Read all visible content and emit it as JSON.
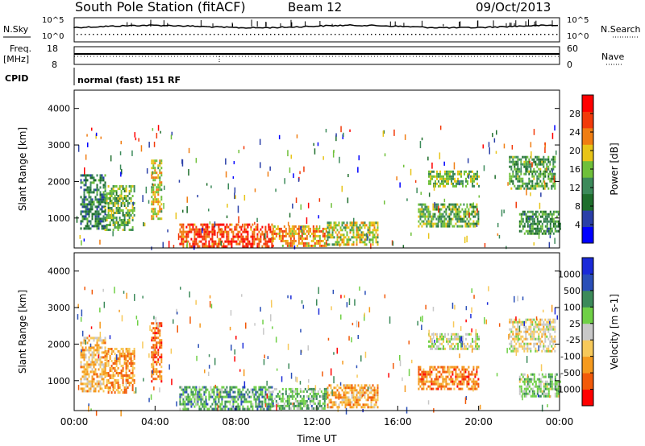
{
  "header": {
    "station": "South Pole Station (fitACF)",
    "beam": "Beam 12",
    "date": "09/Oct/2013"
  },
  "status_panel": {
    "nsky_label": "N.Sky",
    "nsky_ticks": [
      "10^5",
      "10^0"
    ],
    "nsearch_label": "N.Search",
    "nsearch_ticks": [
      "10^5",
      "10^0"
    ],
    "freq_label": "Freq.",
    "freq_unit": "[MHz]",
    "freq_ticks": [
      "18",
      "8"
    ],
    "nave_label": "Nave",
    "nave_ticks": [
      "60",
      "0"
    ],
    "cpid_label": "CPID",
    "cpid_value": "normal (fast) 151 RF"
  },
  "chart_data": [
    {
      "type": "heatmap",
      "name": "power",
      "ylabel": "Slant Range [km]",
      "yticks": [
        "1000",
        "2000",
        "3000",
        "4000"
      ],
      "ylim": [
        180,
        4500
      ],
      "xlim": [
        0,
        24
      ],
      "colorbar_label": "Power [dB]",
      "colorbar_ticks": [
        "28",
        "24",
        "20",
        "16",
        "12",
        "8",
        "4"
      ],
      "colormap": [
        "#0000ff",
        "#2a3fa8",
        "#1e6e2c",
        "#3c8a5a",
        "#6fc03a",
        "#e8c418",
        "#f07d12",
        "#f23a0a",
        "#ff0000"
      ],
      "regions": [
        {
          "t": [
            0.3,
            1.5
          ],
          "r": [
            700,
            2200
          ],
          "level": 0.3
        },
        {
          "t": [
            1.5,
            3.0
          ],
          "r": [
            700,
            1900
          ],
          "level": 0.45
        },
        {
          "t": [
            3.8,
            4.3
          ],
          "r": [
            1000,
            2600
          ],
          "level": 0.6
        },
        {
          "t": [
            5.2,
            9.8
          ],
          "r": [
            250,
            850
          ],
          "level": 0.85
        },
        {
          "t": [
            9.8,
            12.5
          ],
          "r": [
            250,
            800
          ],
          "level": 0.7
        },
        {
          "t": [
            12.5,
            15.0
          ],
          "r": [
            250,
            900
          ],
          "level": 0.55
        },
        {
          "t": [
            17.5,
            20.0
          ],
          "r": [
            1900,
            2300
          ],
          "level": 0.5
        },
        {
          "t": [
            17.0,
            20.0
          ],
          "r": [
            800,
            1400
          ],
          "level": 0.45
        },
        {
          "t": [
            21.5,
            23.8
          ],
          "r": [
            1800,
            2700
          ],
          "level": 0.4
        },
        {
          "t": [
            22.0,
            24.0
          ],
          "r": [
            600,
            1200
          ],
          "level": 0.35
        }
      ]
    },
    {
      "type": "heatmap",
      "name": "velocity",
      "ylabel": "Slant Range [km]",
      "yticks": [
        "1000",
        "2000",
        "3000",
        "4000"
      ],
      "ylim": [
        180,
        4500
      ],
      "xlim": [
        0,
        24
      ],
      "xticks": [
        "00:00",
        "04:00",
        "08:00",
        "12:00",
        "16:00",
        "20:00",
        "00:00"
      ],
      "xlabel": "Time UT",
      "colorbar_label": "Velocity [m s-1]",
      "colorbar_ticks": [
        "1000",
        "500",
        "100",
        "25",
        "-25",
        "-100",
        "-500",
        "-1000"
      ],
      "colormap": [
        "#ff0000",
        "#f25a0a",
        "#f59a1e",
        "#f7c95a",
        "#c8c8c8",
        "#6fd046",
        "#3c8a5a",
        "#2a4fb8",
        "#1a2ad8"
      ],
      "regions": [
        {
          "t": [
            0.3,
            1.5
          ],
          "r": [
            700,
            2200
          ],
          "level": 0.35
        },
        {
          "t": [
            1.5,
            3.0
          ],
          "r": [
            700,
            1900
          ],
          "level": 0.25
        },
        {
          "t": [
            3.8,
            4.3
          ],
          "r": [
            1000,
            2600
          ],
          "level": 0.15
        },
        {
          "t": [
            5.2,
            9.8
          ],
          "r": [
            250,
            850
          ],
          "level": 0.7
        },
        {
          "t": [
            9.8,
            12.5
          ],
          "r": [
            250,
            800
          ],
          "level": 0.65
        },
        {
          "t": [
            12.5,
            15.0
          ],
          "r": [
            250,
            900
          ],
          "level": 0.3
        },
        {
          "t": [
            17.5,
            20.0
          ],
          "r": [
            1900,
            2300
          ],
          "level": 0.5
        },
        {
          "t": [
            17.0,
            20.0
          ],
          "r": [
            800,
            1400
          ],
          "level": 0.2
        },
        {
          "t": [
            21.5,
            23.8
          ],
          "r": [
            1800,
            2700
          ],
          "level": 0.45
        },
        {
          "t": [
            22.0,
            24.0
          ],
          "r": [
            600,
            1200
          ],
          "level": 0.6
        }
      ]
    }
  ]
}
